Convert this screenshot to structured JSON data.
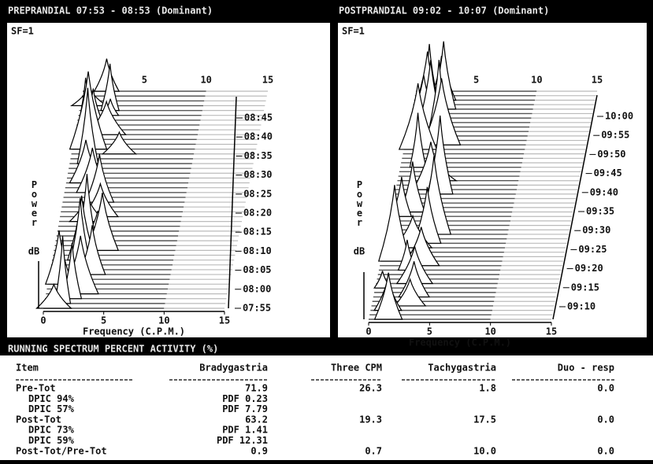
{
  "panels": [
    {
      "title": "PREPRANDIAL 07:53 - 08:53 (Dominant)",
      "sf": "SF=1",
      "y_label": "Power",
      "y_unit": "dB",
      "x_label": "Frequency (C.P.M.)",
      "front_ticks": [
        "0",
        "5",
        "10",
        "15"
      ],
      "back_ticks": [
        "5",
        "10",
        "15"
      ],
      "times": [
        "08:45",
        "08:40",
        "08:35",
        "08:30",
        "08:25",
        "08:20",
        "08:15",
        "08:10",
        "08:05",
        "08:00",
        "07:55"
      ]
    },
    {
      "title": "POSTPRANDIAL 09:02 - 10:07 (Dominant)",
      "sf": "SF=1",
      "y_label": "Power",
      "y_unit": "dB",
      "x_label": "Frequency (C.P.M.)",
      "front_ticks": [
        "0",
        "5",
        "10",
        "15"
      ],
      "back_ticks": [
        "5",
        "10",
        "15"
      ],
      "times": [
        "10:00",
        "09:55",
        "09:50",
        "09:45",
        "09:40",
        "09:35",
        "09:30",
        "09:25",
        "09:20",
        "09:15",
        "09:10"
      ]
    }
  ],
  "table": {
    "title": "RUNNING SPECTRUM PERCENT ACTIVITY (%)",
    "columns": [
      "Item",
      "Bradygastria",
      "Three CPM",
      "Tachygastria",
      "Duo - resp"
    ],
    "rows": [
      [
        "Pre-Tot",
        "71.9",
        "26.3",
        "1.8",
        "0.0"
      ],
      [
        "DPIC 94%",
        "PDF 0.23",
        null,
        null,
        null
      ],
      [
        "DPIC 57%",
        "PDF 7.79",
        null,
        null,
        null
      ],
      [
        "Post-Tot",
        "63.2",
        "19.3",
        "17.5",
        "0.0"
      ],
      [
        "DPIC 73%",
        "PDF 1.41",
        null,
        null,
        null
      ],
      [
        "DPIC 59%",
        "PDF 12.31",
        null,
        null,
        null
      ],
      [
        "Post-Tot/Pre-Tot",
        "0.9",
        "0.7",
        "10.0",
        "0.0"
      ]
    ]
  }
}
